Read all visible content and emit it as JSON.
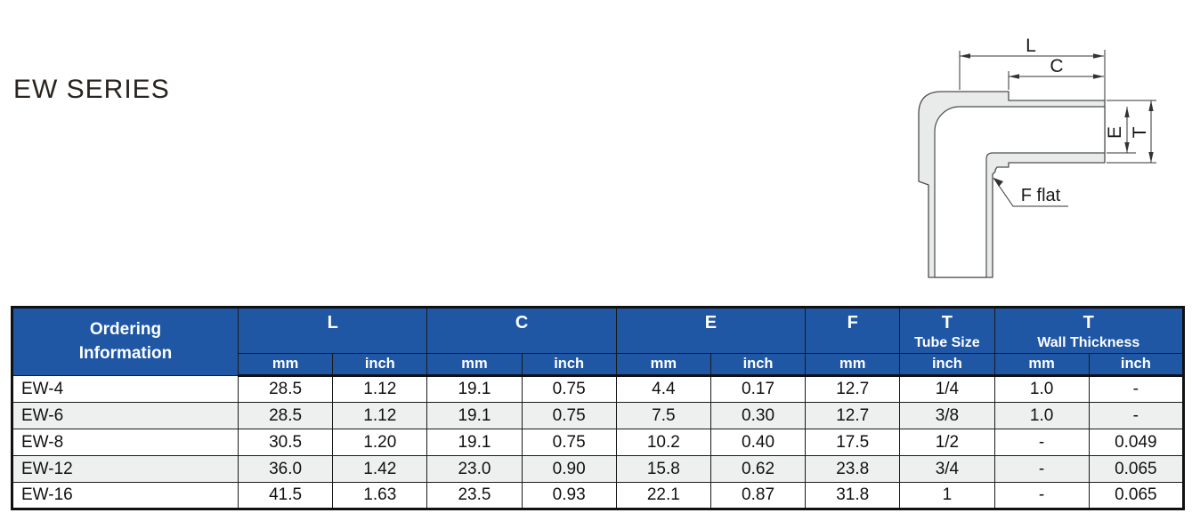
{
  "title": "EW SERIES",
  "colors": {
    "header_bg": "#1f57a4",
    "stripe": "#eef0f0",
    "line": "#1a1a1a",
    "diagram_fill": "#e9ebea"
  },
  "diagram": {
    "dim_l": "L",
    "dim_c": "C",
    "dim_e": "E",
    "dim_t": "T",
    "f_flat": "F flat"
  },
  "table": {
    "ordering_header": [
      "Ordering",
      "Information"
    ],
    "groups": [
      {
        "label": "L"
      },
      {
        "label": "C"
      },
      {
        "label": "E"
      },
      {
        "label": "F"
      },
      {
        "label": "T",
        "label2": "Tube Size"
      },
      {
        "label": "T",
        "label2": "Wall Thickness"
      }
    ],
    "units": [
      "mm",
      "inch",
      "mm",
      "inch",
      "mm",
      "inch",
      "mm",
      "inch",
      "mm",
      "inch"
    ],
    "rows": [
      {
        "name": "EW-4",
        "values": [
          "28.5",
          "1.12",
          "19.1",
          "0.75",
          "4.4",
          "0.17",
          "12.7",
          "1/4",
          "1.0",
          "-"
        ]
      },
      {
        "name": "EW-6",
        "values": [
          "28.5",
          "1.12",
          "19.1",
          "0.75",
          "7.5",
          "0.30",
          "12.7",
          "3/8",
          "1.0",
          "-"
        ]
      },
      {
        "name": "EW-8",
        "values": [
          "30.5",
          "1.20",
          "19.1",
          "0.75",
          "10.2",
          "0.40",
          "17.5",
          "1/2",
          "-",
          "0.049"
        ]
      },
      {
        "name": "EW-12",
        "values": [
          "36.0",
          "1.42",
          "23.0",
          "0.90",
          "15.8",
          "0.62",
          "23.8",
          "3/4",
          "-",
          "0.065"
        ]
      },
      {
        "name": "EW-16",
        "values": [
          "41.5",
          "1.63",
          "23.5",
          "0.93",
          "22.1",
          "0.87",
          "31.8",
          "1",
          "-",
          "0.065"
        ]
      }
    ]
  }
}
